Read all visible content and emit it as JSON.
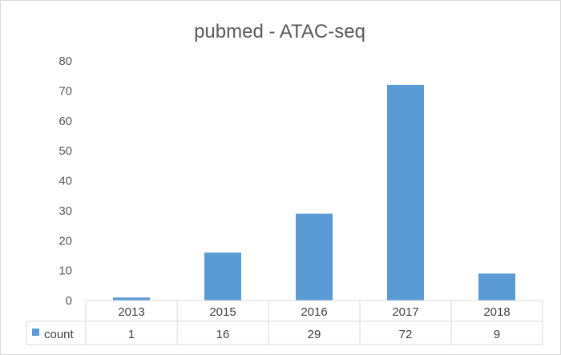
{
  "chart_data": {
    "type": "bar",
    "title": "pubmed - ATAC-seq",
    "categories": [
      "2013",
      "2015",
      "2016",
      "2017",
      "2018"
    ],
    "series": [
      {
        "name": "count",
        "values": [
          1,
          16,
          29,
          72,
          9
        ],
        "color": "#5b9bd5"
      }
    ],
    "ylim": [
      0,
      80
    ],
    "yticks": [
      0,
      10,
      20,
      30,
      40,
      50,
      60,
      70,
      80
    ],
    "grid": false,
    "legend": "data table",
    "data_table": true
  }
}
